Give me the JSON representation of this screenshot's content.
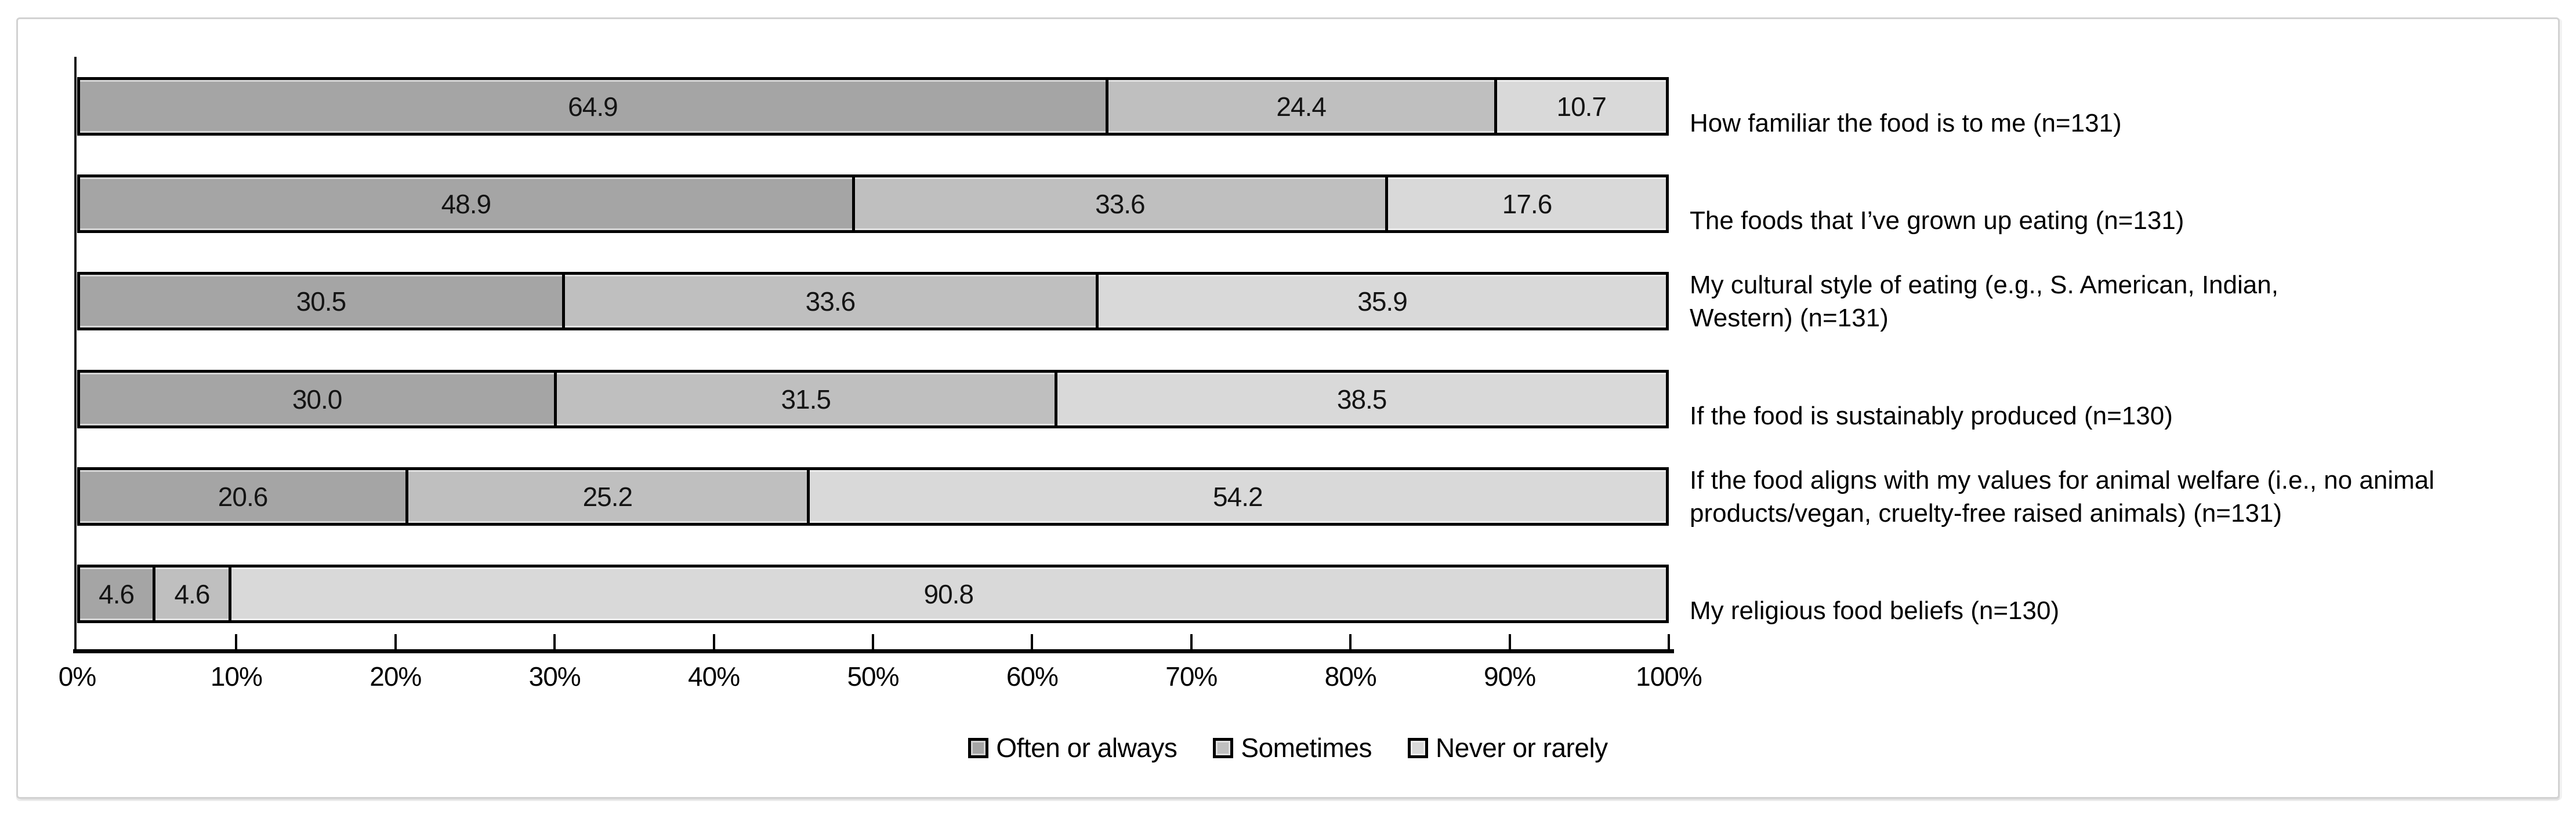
{
  "chart_data": {
    "type": "bar",
    "orientation": "horizontal",
    "stacked": true,
    "grid": false,
    "title": "",
    "xlabel": "",
    "ylabel": "",
    "xlim": [
      0,
      100
    ],
    "x_ticks": [
      "0%",
      "10%",
      "20%",
      "30%",
      "40%",
      "50%",
      "60%",
      "70%",
      "80%",
      "90%",
      "100%"
    ],
    "legend_position": "bottom",
    "categories": [
      [
        "How familiar the food is to me (n=131)"
      ],
      [
        "The foods that I’ve grown up eating (n=131)"
      ],
      [
        "My cultural style of eating (e.g.,  S. American, Indian,",
        "Western) (n=131)"
      ],
      [
        "If the food is sustainably produced (n=130)"
      ],
      [
        "If the food aligns with my values for animal welfare (i.e., no animal",
        "products/vegan, cruelty-free raised animals) (n=131)"
      ],
      [
        "My religious food beliefs (n=130)"
      ]
    ],
    "series": [
      {
        "name": "Often or always",
        "color": "#a5a5a5",
        "values": [
          64.9,
          48.9,
          30.5,
          30.0,
          20.6,
          4.6
        ]
      },
      {
        "name": "Sometimes",
        "color": "#bfbfbf",
        "values": [
          24.4,
          33.6,
          33.6,
          31.5,
          25.2,
          4.6
        ]
      },
      {
        "name": "Never or rarely",
        "color": "#d9d9d9",
        "values": [
          10.7,
          17.6,
          35.9,
          38.5,
          54.2,
          90.8
        ]
      }
    ],
    "value_decimals": 1,
    "axis_color": "#000000",
    "bar_border_color": "#000000",
    "panel_border_color": "#d2d2d2"
  }
}
